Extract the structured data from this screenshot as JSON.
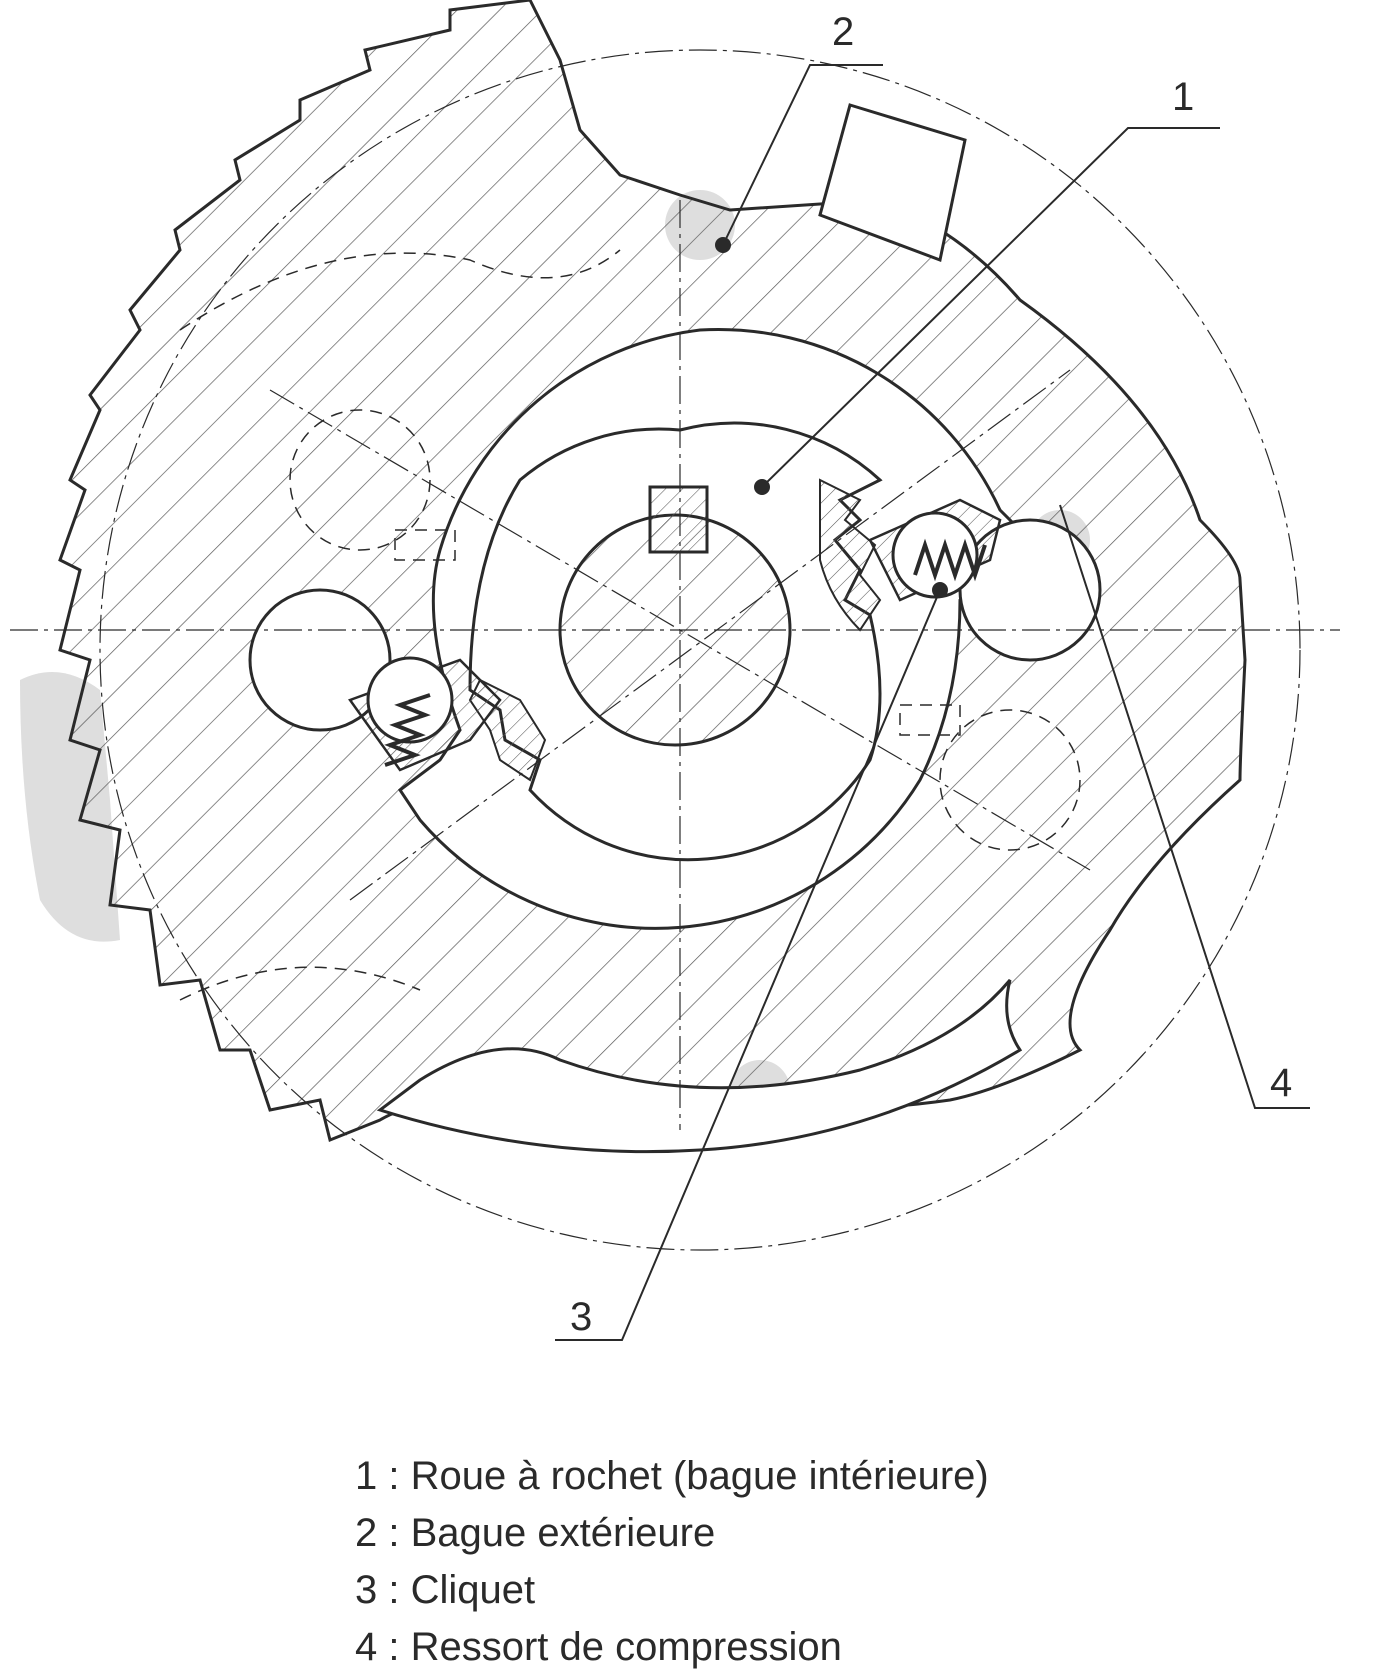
{
  "callouts": [
    {
      "number": "1"
    },
    {
      "number": "2"
    },
    {
      "number": "3"
    },
    {
      "number": "4"
    }
  ],
  "legend": [
    "1 : Roue à rochet (bague intérieure)",
    "2 : Bague extérieure",
    "3 : Cliquet",
    "4 : Ressort de compression"
  ],
  "colors": {
    "line": "#2a2a2a",
    "hatch": "#5a5a5a",
    "shade": "#c8c8c8",
    "background": "#ffffff"
  }
}
